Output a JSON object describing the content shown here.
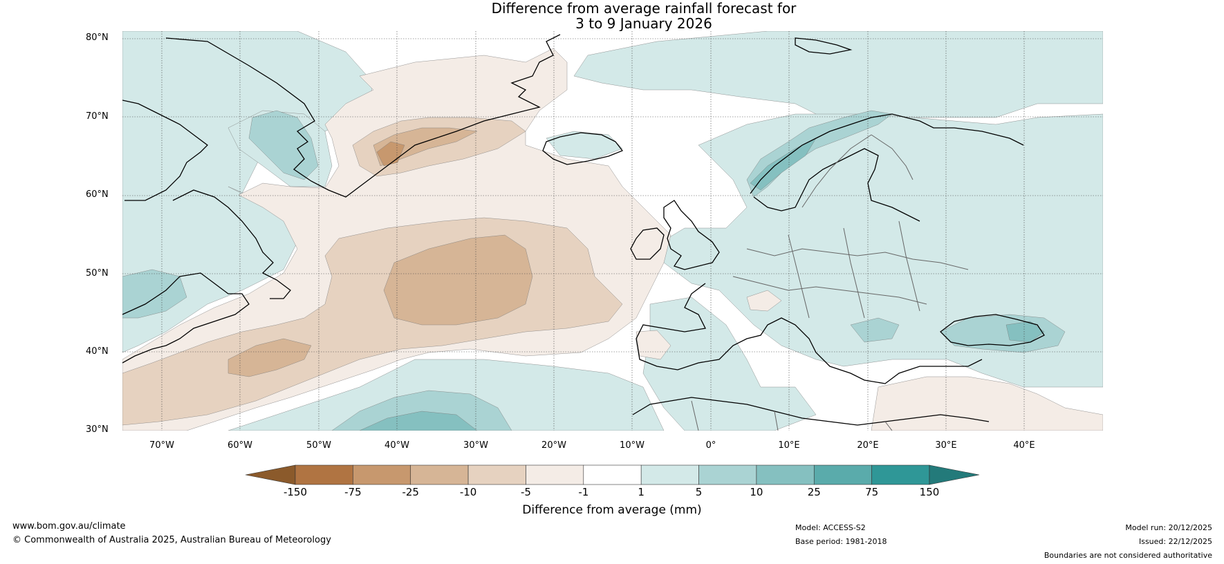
{
  "title": {
    "line1": "Difference from average rainfall forecast for",
    "line2": "3 to 9 January 2026"
  },
  "map": {
    "latitude_labels": [
      "80°N",
      "70°N",
      "60°N",
      "50°N",
      "40°N",
      "30°N"
    ],
    "longitude_labels": [
      "70°W",
      "60°W",
      "50°W",
      "40°W",
      "30°W",
      "20°W",
      "10°W",
      "0°",
      "10°E",
      "20°E",
      "30°E",
      "40°E"
    ],
    "colors": {
      "dry_150": "#8b5a2b",
      "dry_75": "#b07442",
      "dry_25": "#c7986e",
      "dry_10": "#d6b596",
      "dry_5": "#e6d2c0",
      "dry_1": "#f4ece6",
      "neutral": "#ffffff",
      "wet_1": "#d3e9e8",
      "wet_5": "#aad3d3",
      "wet_10": "#85c0c0",
      "wet_25": "#5aabab",
      "wet_75": "#2f9797",
      "wet_150": "#237a7a"
    }
  },
  "colorbar": {
    "ticks": [
      "-150",
      "-75",
      "-25",
      "-10",
      "-5",
      "-1",
      "1",
      "5",
      "10",
      "25",
      "75",
      "150"
    ],
    "colors": [
      "#8b5a2b",
      "#b07442",
      "#c7986e",
      "#d6b596",
      "#e6d2c0",
      "#f4ece6",
      "#ffffff",
      "#d3e9e8",
      "#aad3d3",
      "#85c0c0",
      "#5aabab",
      "#2f9797",
      "#237a7a"
    ],
    "title": "Difference from average (mm)"
  },
  "footer": {
    "website": "www.bom.gov.au/climate",
    "copyright": "© Commonwealth of Australia 2025, Australian Bureau of Meteorology",
    "model": "Model: ACCESS-S2",
    "base_period": "Base period: 1981-2018",
    "model_run": "Model run: 20/12/2025",
    "issued": "Issued: 22/12/2025",
    "disclaimer": "Boundaries are not considered authoritative"
  }
}
